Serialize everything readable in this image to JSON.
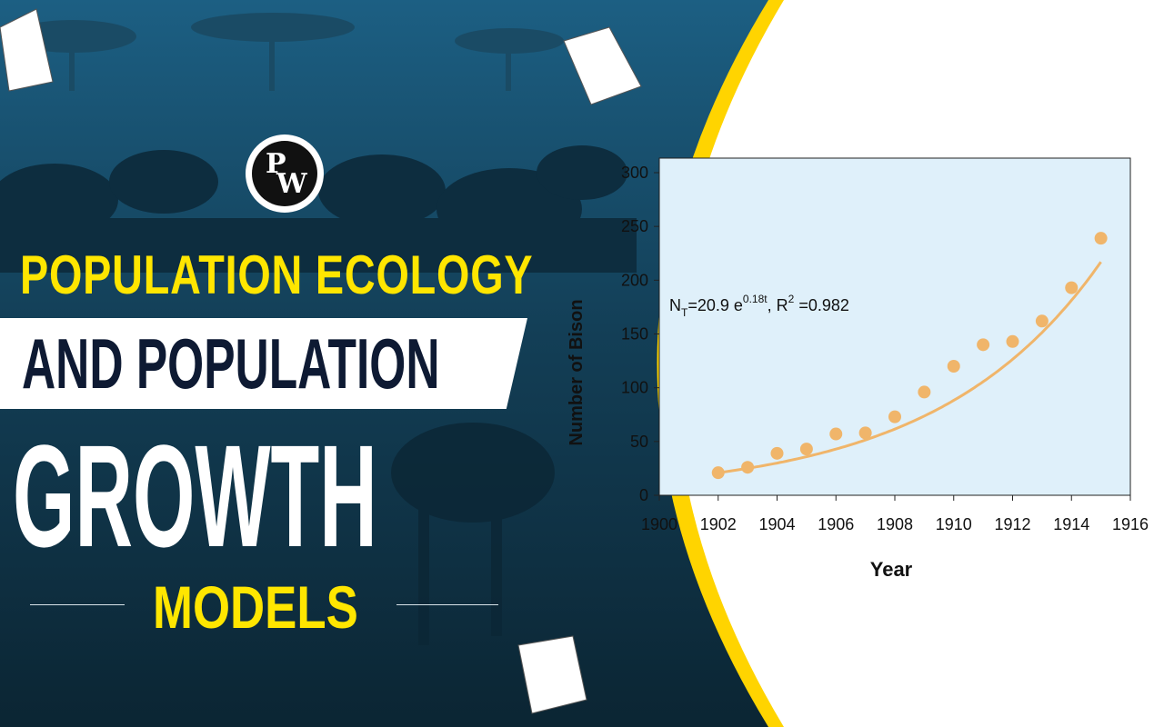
{
  "brand": {
    "logo_text_p": "P",
    "logo_text_w": "W"
  },
  "headline": {
    "line1": "POPULATION ECOLOGY",
    "line2": "AND POPULATION",
    "line3": "GROWTH",
    "line4": "MODELS"
  },
  "colors": {
    "accent_yellow": "#ffe600",
    "navy": "#0e1a33",
    "chart_bg": "#dff0fa",
    "series": "#f0b56a"
  },
  "chart_data": {
    "type": "scatter",
    "title": "",
    "xlabel": "Year",
    "ylabel": "Number of Bison",
    "xlim": [
      1900,
      1916
    ],
    "ylim": [
      0,
      300
    ],
    "xticks": [
      "1900",
      "1902",
      "1904",
      "1906",
      "1908",
      "1910",
      "1912",
      "1914",
      "1916"
    ],
    "yticks": [
      "0",
      "50",
      "100",
      "150",
      "200",
      "250",
      "300"
    ],
    "points": [
      {
        "x": 1902,
        "y": 21
      },
      {
        "x": 1903,
        "y": 26
      },
      {
        "x": 1904,
        "y": 39
      },
      {
        "x": 1905,
        "y": 43
      },
      {
        "x": 1906,
        "y": 57
      },
      {
        "x": 1907,
        "y": 58
      },
      {
        "x": 1908,
        "y": 73
      },
      {
        "x": 1909,
        "y": 96
      },
      {
        "x": 1910,
        "y": 120
      },
      {
        "x": 1911,
        "y": 140
      },
      {
        "x": 1912,
        "y": 143
      },
      {
        "x": 1913,
        "y": 162
      },
      {
        "x": 1914,
        "y": 193
      },
      {
        "x": 1915,
        "y": 239
      }
    ],
    "fit": {
      "type": "exponential",
      "n0": 20.9,
      "r": 0.18,
      "start": 1902,
      "x_from": 1902,
      "x_to": 1915
    },
    "equation": {
      "lhs": "N",
      "lhs_sub": "T",
      "mid": "=20.9 e",
      "exp": "0.18t",
      "tail": ", R",
      "r_sup": "2",
      "r_val": " =0.982"
    }
  }
}
